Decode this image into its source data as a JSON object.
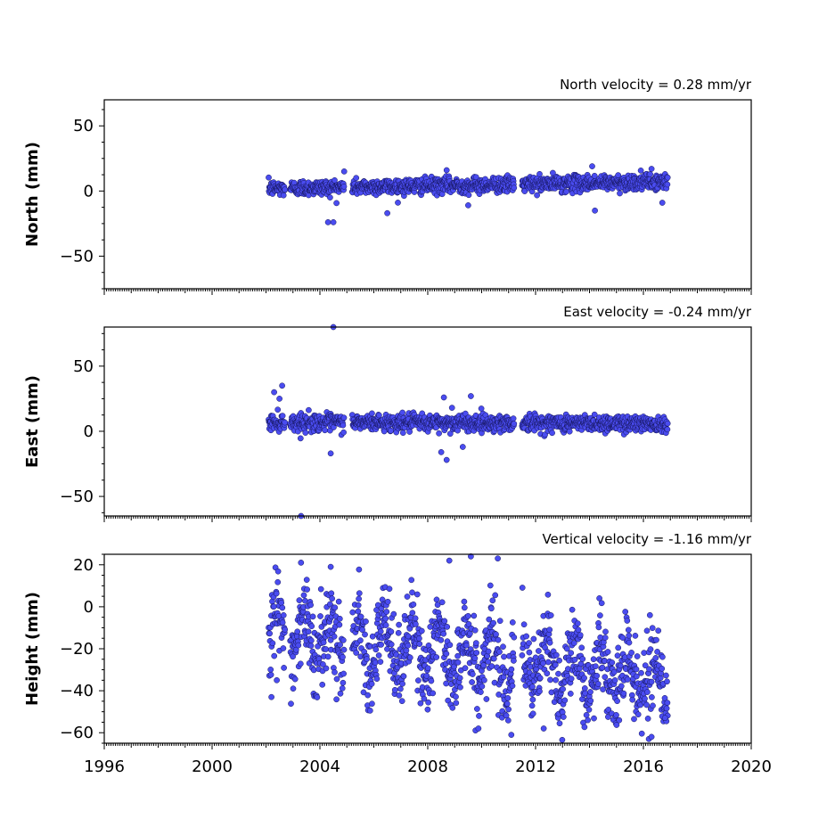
{
  "chart_data": [
    {
      "type": "scatter",
      "title": "North velocity = 0.28 mm/yr",
      "ylabel": "North (mm)",
      "xlim": [
        1996,
        2020
      ],
      "ylim": [
        -75,
        70
      ],
      "yticks": [
        50,
        0,
        -50
      ],
      "ytick_labels": [
        "50",
        "0",
        "−50"
      ],
      "series": [
        {
          "segments": [
            [
              2002.1,
              2002.7
            ],
            [
              2002.9,
              2004.9
            ],
            [
              2005.2,
              2011.2
            ],
            [
              2011.5,
              2016.9
            ]
          ],
          "trend_start": 2.0,
          "trend_end": 7.0,
          "scatter": 3.0,
          "outliers": [
            [
              2004.3,
              -24
            ],
            [
              2004.5,
              -24
            ],
            [
              2006.5,
              -17
            ],
            [
              2014.2,
              -15
            ],
            [
              2016.7,
              -9
            ],
            [
              2009.5,
              -11
            ],
            [
              2014.1,
              19
            ],
            [
              2016.3,
              17
            ],
            [
              2004.9,
              15
            ],
            [
              2008.7,
              16
            ]
          ]
        }
      ]
    },
    {
      "type": "scatter",
      "title": "East velocity = -0.24 mm/yr",
      "ylabel": "East (mm)",
      "xlim": [
        1996,
        2020
      ],
      "ylim": [
        -65,
        80
      ],
      "yticks": [
        50,
        0,
        -50
      ],
      "ytick_labels": [
        "50",
        "0",
        "−50"
      ],
      "series": [
        {
          "segments": [
            [
              2002.1,
              2002.7
            ],
            [
              2002.9,
              2004.9
            ],
            [
              2005.2,
              2011.2
            ],
            [
              2011.5,
              2016.9
            ]
          ],
          "trend_start": 7.0,
          "trend_end": 6.0,
          "scatter": 3.2,
          "outliers": [
            [
              2004.5,
              80
            ],
            [
              2003.3,
              -65
            ],
            [
              2004.4,
              -17
            ],
            [
              2002.3,
              30
            ],
            [
              2002.6,
              35
            ],
            [
              2002.5,
              25
            ],
            [
              2008.7,
              -22
            ],
            [
              2008.5,
              -16
            ],
            [
              2008.6,
              26
            ],
            [
              2009.6,
              27
            ],
            [
              2009.3,
              -12
            ],
            [
              2008.9,
              18
            ]
          ]
        }
      ]
    },
    {
      "type": "scatter",
      "title": "Vertical velocity = -1.16 mm/yr",
      "ylabel": "Height (mm)",
      "xlim": [
        1996,
        2020
      ],
      "ylim": [
        -65,
        25
      ],
      "yticks": [
        20,
        0,
        -20,
        -40,
        -60
      ],
      "ytick_labels": [
        "20",
        "0",
        "−20",
        "−40",
        "−60"
      ],
      "xticks": [
        1996,
        2000,
        2004,
        2008,
        2012,
        2016,
        2020
      ],
      "series": [
        {
          "segments": [
            [
              2002.1,
              2002.7
            ],
            [
              2002.9,
              2004.9
            ],
            [
              2005.2,
              2011.2
            ],
            [
              2011.5,
              2016.9
            ]
          ],
          "trend_start": -12.0,
          "trend_end": -35.0,
          "scatter": 9.5,
          "seasonal": 11.0,
          "outliers": [
            [
              2003.3,
              21
            ],
            [
              2004.4,
              19
            ],
            [
              2008.8,
              22
            ],
            [
              2009.6,
              24
            ],
            [
              2010.6,
              23
            ],
            [
              2011.1,
              -61
            ],
            [
              2016.2,
              -63
            ],
            [
              2016.3,
              -62
            ],
            [
              2012.3,
              -58
            ],
            [
              2016.8,
              -53
            ],
            [
              2009.9,
              -52
            ],
            [
              2002.2,
              -43
            ],
            [
              2002.4,
              -35
            ]
          ]
        }
      ]
    }
  ]
}
